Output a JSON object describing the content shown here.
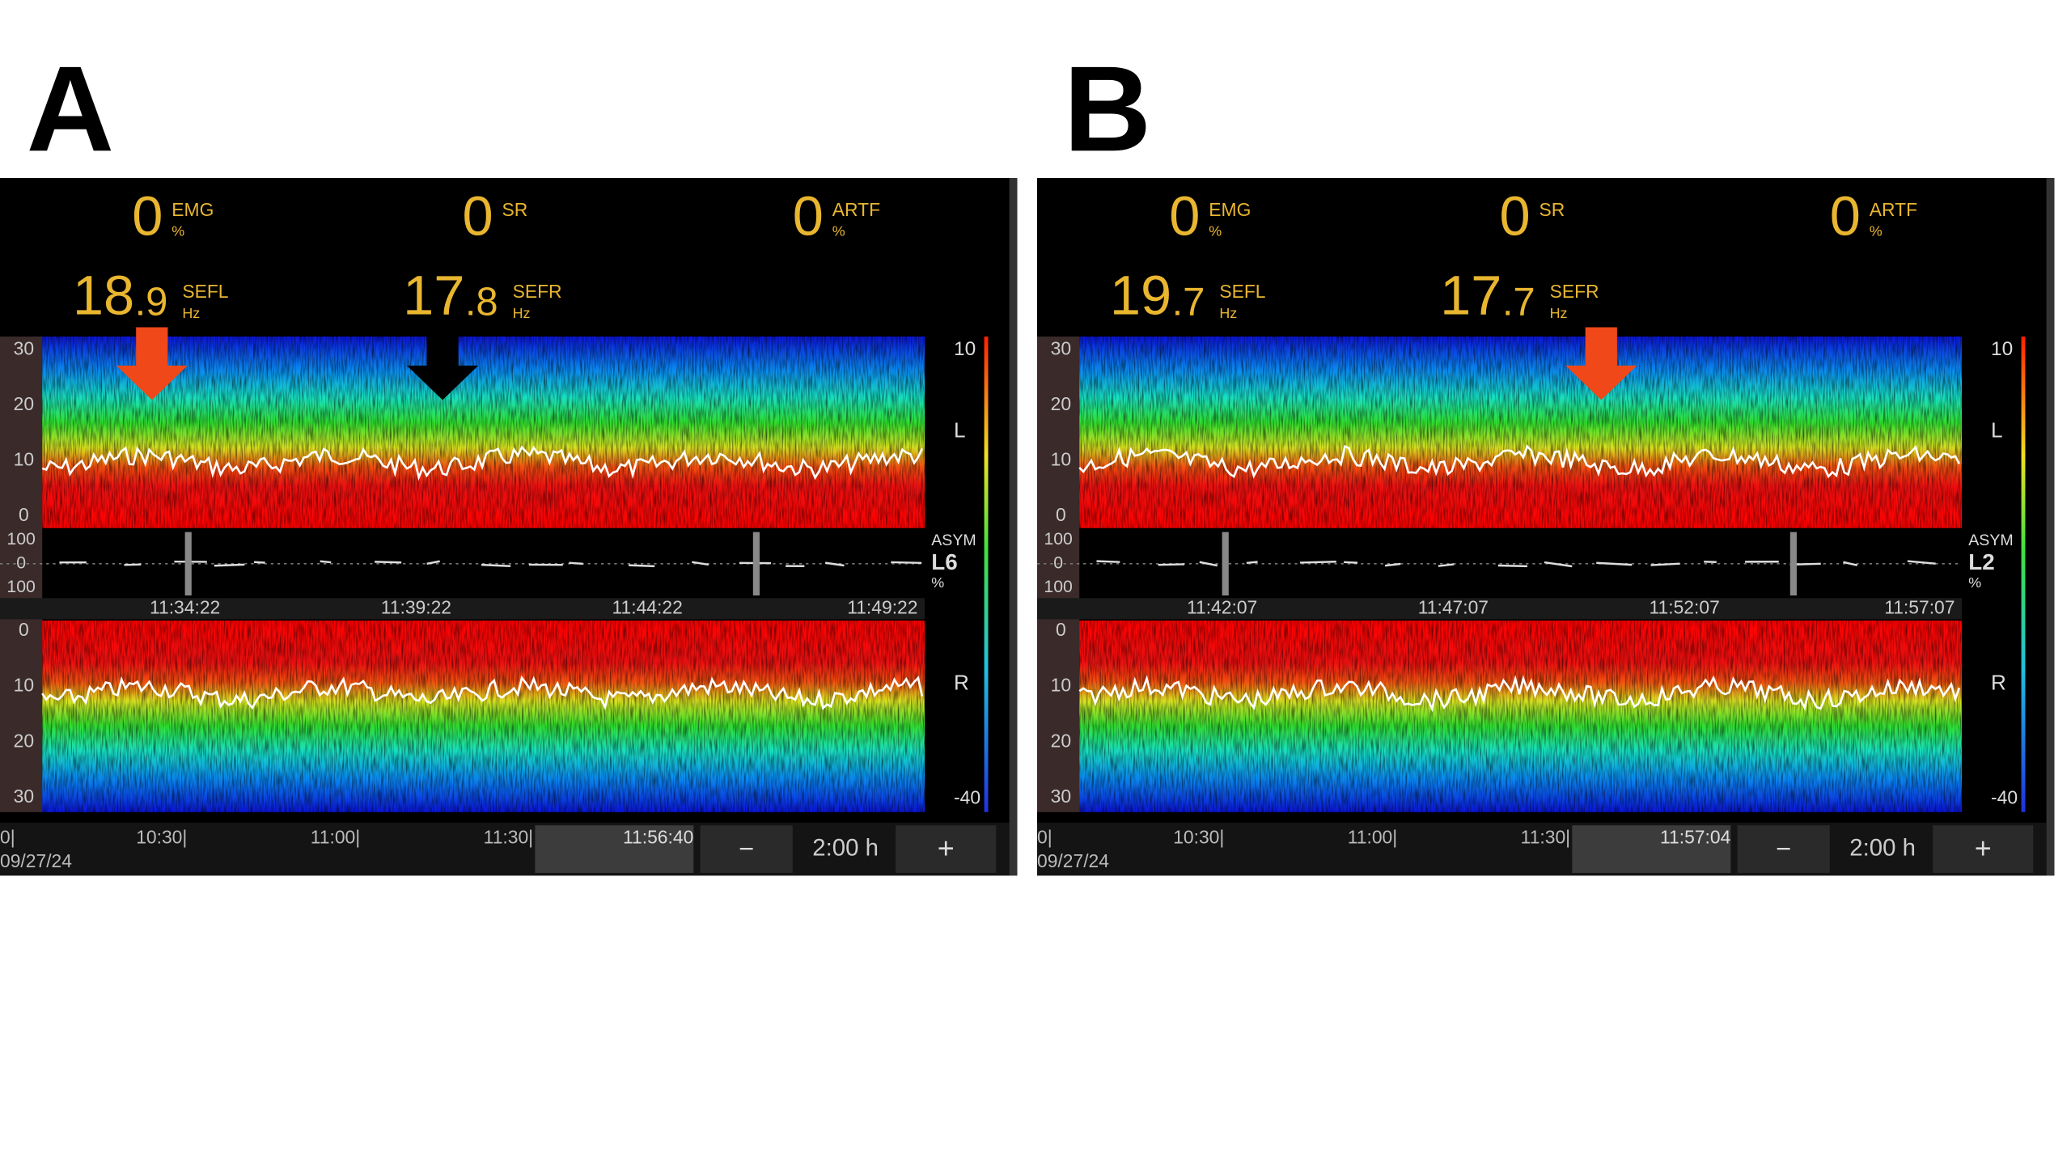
{
  "panels": [
    {
      "label": "A",
      "readouts": [
        {
          "value": "0",
          "name": "EMG",
          "unit": "%"
        },
        {
          "value": "0",
          "name": "SR"
        },
        {
          "value": "0",
          "name": "ARTF",
          "unit": "%"
        }
      ],
      "sef": [
        {
          "whole": "18",
          "fraction": ".9",
          "name": "SEFL",
          "unit": "Hz"
        },
        {
          "whole": "17",
          "fraction": ".8",
          "name": "SEFR",
          "unit": "Hz"
        }
      ],
      "left_axis": [
        "30",
        "20",
        "10",
        "0"
      ],
      "asym_axis": [
        "100",
        "0",
        "100"
      ],
      "times": [
        "11:34:22",
        "11:39:22",
        "11:44:22",
        "11:49:22"
      ],
      "right_axis": [
        "0",
        "10",
        "20",
        "30"
      ],
      "scale": {
        "top": "10",
        "left": "L",
        "asym": "ASYM",
        "asym_value": "L6",
        "asym_unit": "%",
        "right": "R",
        "bottom": "-40"
      },
      "timeline": {
        "ticks": [
          "0|",
          "10:30|",
          "11:00|",
          "11:30|"
        ],
        "current": "11:56:40",
        "date": "09/27/24",
        "minus": "−",
        "zoom": "2:00 h",
        "plus": "+"
      }
    },
    {
      "label": "B",
      "readouts": [
        {
          "value": "0",
          "name": "EMG",
          "unit": "%"
        },
        {
          "value": "0",
          "name": "SR"
        },
        {
          "value": "0",
          "name": "ARTF",
          "unit": "%"
        }
      ],
      "sef": [
        {
          "whole": "19",
          "fraction": ".7",
          "name": "SEFL",
          "unit": "Hz"
        },
        {
          "whole": "17",
          "fraction": ".7",
          "name": "SEFR",
          "unit": "Hz"
        }
      ],
      "left_axis": [
        "30",
        "20",
        "10",
        "0"
      ],
      "asym_axis": [
        "100",
        "0",
        "100"
      ],
      "times": [
        "11:42:07",
        "11:47:07",
        "11:52:07",
        "11:57:07"
      ],
      "right_axis": [
        "0",
        "10",
        "20",
        "30"
      ],
      "scale": {
        "top": "10",
        "left": "L",
        "asym": "ASYM",
        "asym_value": "L2",
        "asym_unit": "%",
        "right": "R",
        "bottom": "-40"
      },
      "timeline": {
        "ticks": [
          "0|",
          "10:30|",
          "11:00|",
          "11:30|"
        ],
        "current": "11:57:04",
        "date": "09/27/24",
        "minus": "−",
        "zoom": "2:00 h",
        "plus": "+"
      }
    }
  ]
}
